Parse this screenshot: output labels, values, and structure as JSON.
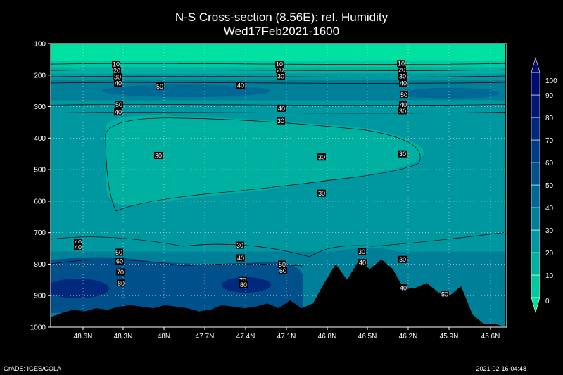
{
  "chart_data": {
    "type": "heatmap",
    "title": "N-S Cross-section (8.56E): rel. Humidity",
    "subtitle": "Wed17Feb2021-1600",
    "xlabel": "",
    "ylabel": "",
    "x_ticks": [
      "48.6N",
      "48.3N",
      "48N",
      "47.7N",
      "47.4N",
      "47.1N",
      "46.8N",
      "46.5N",
      "46.2N",
      "45.9N",
      "45.6N"
    ],
    "y_ticks": [
      100,
      200,
      300,
      400,
      500,
      600,
      700,
      800,
      900,
      1000
    ],
    "ylim": [
      100,
      1000
    ],
    "y_reversed": true,
    "grid": true,
    "colorbar": {
      "ticks": [
        0,
        10,
        20,
        30,
        40,
        50,
        60,
        70,
        80,
        90,
        100
      ],
      "colors": [
        "#00e0a0",
        "#00c8a0",
        "#00b0a0",
        "#0098a0",
        "#008098",
        "#006894",
        "#00508c",
        "#003c84",
        "#00287c",
        "#001874",
        "#000c6c"
      ]
    },
    "contour_labels": [
      {
        "lat": "48.3N",
        "p": 165,
        "v": 10
      },
      {
        "lat": "48.3N",
        "p": 185,
        "v": 20
      },
      {
        "lat": "48.3N",
        "p": 205,
        "v": 30
      },
      {
        "lat": "48.3N",
        "p": 225,
        "v": 40
      },
      {
        "lat": "48N",
        "p": 235,
        "v": 50
      },
      {
        "lat": "48.3N",
        "p": 293,
        "v": 50
      },
      {
        "lat": "48.3N",
        "p": 317,
        "v": 40
      },
      {
        "lat": "47.1N",
        "p": 165,
        "v": 10
      },
      {
        "lat": "47.1N",
        "p": 183,
        "v": 20
      },
      {
        "lat": "47.1N",
        "p": 203,
        "v": 30
      },
      {
        "lat": "47.4N",
        "p": 232,
        "v": 40
      },
      {
        "lat": "47.1N",
        "p": 305,
        "v": 40
      },
      {
        "lat": "47.1N",
        "p": 345,
        "v": 30
      },
      {
        "lat": "46.2N",
        "p": 163,
        "v": 10
      },
      {
        "lat": "46.2N",
        "p": 183,
        "v": 20
      },
      {
        "lat": "46.2N",
        "p": 203,
        "v": 30
      },
      {
        "lat": "46.2N",
        "p": 225,
        "v": 40
      },
      {
        "lat": "46.2N",
        "p": 262,
        "v": 50
      },
      {
        "lat": "46.2N",
        "p": 293,
        "v": 40
      },
      {
        "lat": "46.2N",
        "p": 313,
        "v": 30
      },
      {
        "lat": "48N",
        "p": 455,
        "v": 30
      },
      {
        "lat": "46.8N",
        "p": 460,
        "v": 30
      },
      {
        "lat": "46.2N",
        "p": 450,
        "v": 30
      },
      {
        "lat": "46.8N",
        "p": 575,
        "v": 30
      },
      {
        "lat": "48.6N",
        "p": 730,
        "v": 40
      },
      {
        "lat": "48.6N",
        "p": 745,
        "v": 40
      },
      {
        "lat": "48.3N",
        "p": 762,
        "v": 50
      },
      {
        "lat": "48.3N",
        "p": 790,
        "v": 60
      },
      {
        "lat": "48.3N",
        "p": 825,
        "v": 70
      },
      {
        "lat": "48.3N",
        "p": 860,
        "v": 80
      },
      {
        "lat": "47.4N",
        "p": 740,
        "v": 30
      },
      {
        "lat": "47.4N",
        "p": 780,
        "v": 40
      },
      {
        "lat": "47.1N",
        "p": 800,
        "v": 50
      },
      {
        "lat": "47.1N",
        "p": 820,
        "v": 60
      },
      {
        "lat": "47.4N",
        "p": 850,
        "v": 70
      },
      {
        "lat": "47.4N",
        "p": 865,
        "v": 80
      },
      {
        "lat": "46.5N",
        "p": 760,
        "v": 30
      },
      {
        "lat": "46.5N",
        "p": 795,
        "v": 40
      },
      {
        "lat": "46.2N",
        "p": 785,
        "v": 30
      },
      {
        "lat": "46.2N",
        "p": 875,
        "v": 40
      },
      {
        "lat": "45.9N",
        "p": 895,
        "v": 50
      }
    ],
    "terrain_p": [
      968,
      955,
      945,
      950,
      940,
      945,
      935,
      930,
      935,
      940,
      930,
      935,
      940,
      950,
      945,
      930,
      935,
      940,
      935,
      925,
      940,
      915,
      940,
      925,
      860,
      800,
      850,
      790,
      815,
      785,
      815,
      880,
      875,
      860,
      890,
      900,
      870,
      960,
      990,
      990,
      1000
    ]
  },
  "footer": {
    "left": "GrADS: IGES/COLA",
    "right": "2021-02-16-04:48"
  }
}
